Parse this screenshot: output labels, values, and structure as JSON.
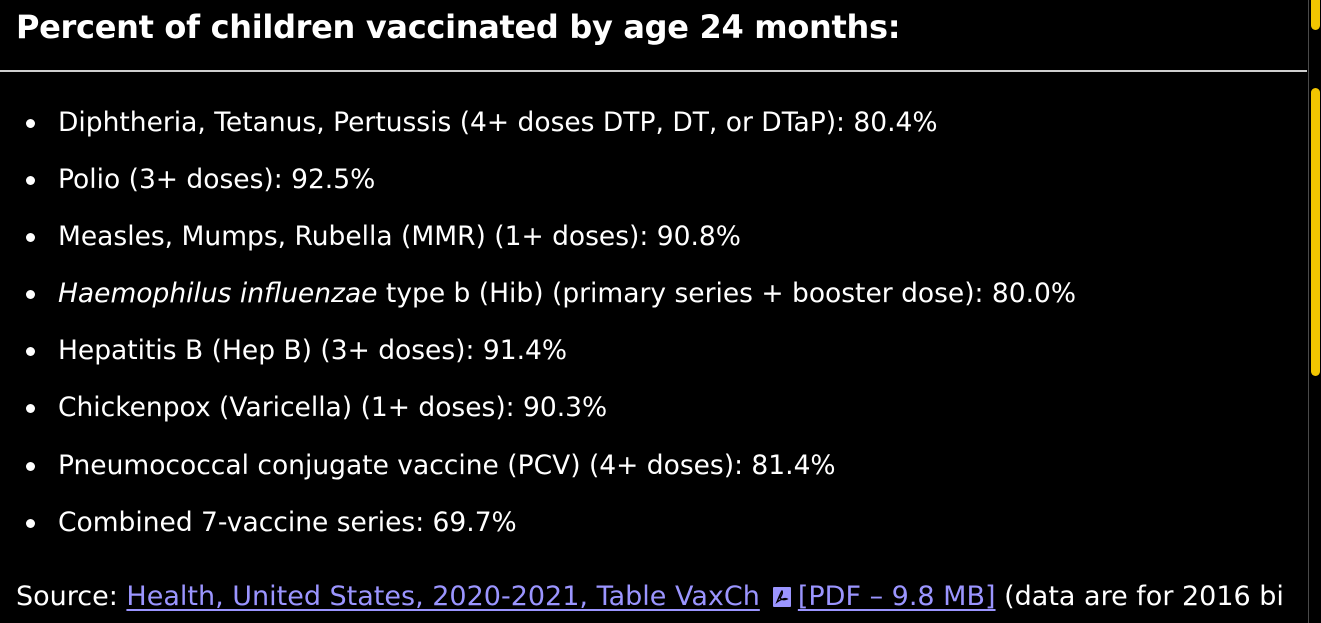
{
  "heading": "Percent of children vaccinated by age 24 months:",
  "items": [
    {
      "prefix": "",
      "italic": "",
      "text": "Diphtheria, Tetanus, Pertussis (4+ doses DTP, DT, or DTaP): 80.4%"
    },
    {
      "prefix": "",
      "italic": "",
      "text": "Polio (3+ doses): 92.5%"
    },
    {
      "prefix": "",
      "italic": "",
      "text": "Measles, Mumps, Rubella (MMR) (1+ doses): 90.8%"
    },
    {
      "prefix": "",
      "italic": "Haemophilus influenzae",
      "text": " type b (Hib) (primary series + booster dose): 80.0%"
    },
    {
      "prefix": "",
      "italic": "",
      "text": "Hepatitis B (Hep B) (3+ doses): 91.4%"
    },
    {
      "prefix": "",
      "italic": "",
      "text": "Chickenpox (Varicella) (1+ doses): 90.3%"
    },
    {
      "prefix": "",
      "italic": "",
      "text": "Pneumococcal conjugate vaccine (PCV) (4+ doses): 81.4%"
    },
    {
      "prefix": "",
      "italic": "",
      "text": "Combined 7-vaccine series: 69.7%"
    }
  ],
  "source": {
    "label": "Source: ",
    "link_text": "Health, United States, 2020-2021, Table VaxCh",
    "pdf_icon": "pdf-file-icon",
    "pdf_label": "[PDF – 9.8 MB]",
    "trailing": " (data are for 2016 bi"
  },
  "colors": {
    "background": "#000000",
    "text": "#ffffff",
    "link": "#9b95ff",
    "scroll_thumb": "#f2c500"
  }
}
